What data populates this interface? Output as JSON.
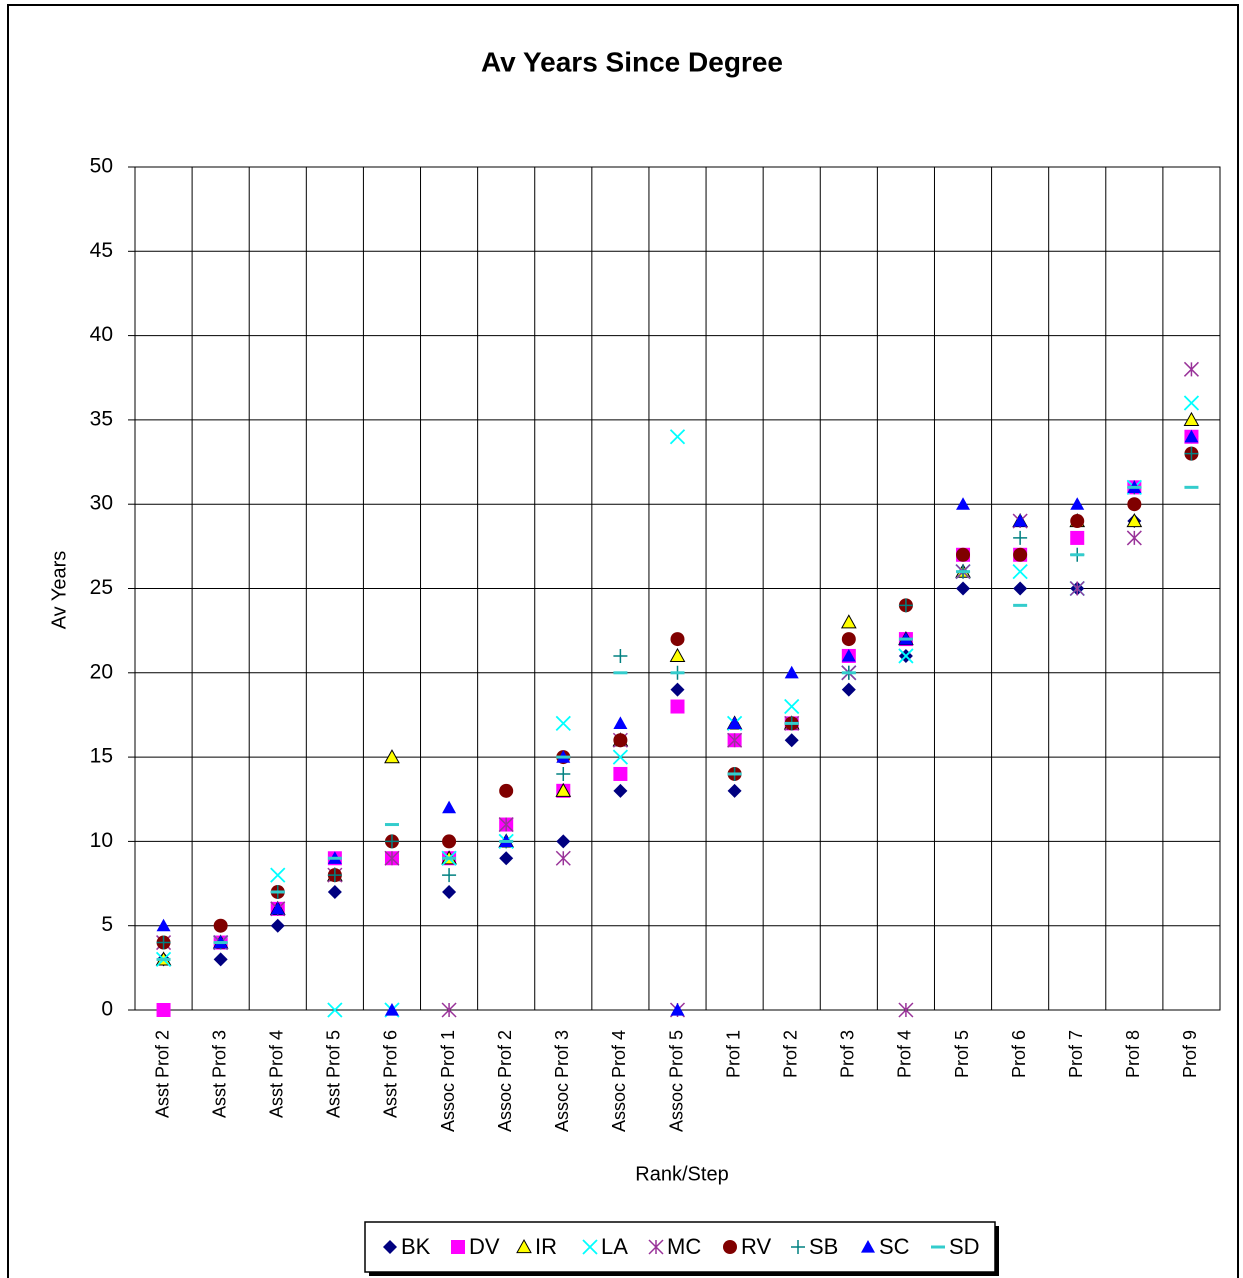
{
  "chart_data": {
    "type": "point",
    "title": "Av Years Since Degree",
    "x_label": "Rank/Step",
    "y_label": "Av Years",
    "categories": [
      "Asst Prof 2",
      "Asst Prof 3",
      "Asst Prof 4",
      "Asst Prof 5",
      "Asst Prof 6",
      "Assoc Prof 1",
      "Assoc Prof 2",
      "Assoc Prof 3",
      "Assoc Prof 4",
      "Assoc Prof 5",
      "Prof 1",
      "Prof 2",
      "Prof 3",
      "Prof 4",
      "Prof 5",
      "Prof 6",
      "Prof 7",
      "Prof 8",
      "Prof 9"
    ],
    "ylim": [
      0,
      50
    ],
    "yticks": [
      0,
      5,
      10,
      15,
      20,
      25,
      30,
      35,
      40,
      45,
      50
    ],
    "grid": true,
    "legend": "bottom",
    "series": [
      {
        "name": "BK",
        "color": "#000080",
        "marker": "diamond",
        "values": [
          3,
          3,
          5,
          7,
          9,
          7,
          9,
          10,
          13,
          19,
          13,
          16,
          19,
          21,
          25,
          25,
          25,
          29,
          34
        ]
      },
      {
        "name": "DV",
        "color": "#ff00ff",
        "marker": "square",
        "values": [
          0,
          4,
          6,
          9,
          9,
          9,
          11,
          13,
          14,
          18,
          16,
          17,
          21,
          22,
          27,
          27,
          28,
          31,
          34
        ]
      },
      {
        "name": "IR",
        "color": "#ffff00",
        "marker": "triangle-outline",
        "values": [
          3,
          4,
          6,
          8,
          15,
          9,
          10,
          13,
          16,
          21,
          17,
          17,
          23,
          22,
          26,
          29,
          29,
          29,
          35
        ]
      },
      {
        "name": "LA",
        "color": "#00ffff",
        "marker": "x",
        "values": [
          3,
          4,
          8,
          0,
          0,
          9,
          10,
          17,
          15,
          34,
          17,
          18,
          20,
          21,
          26,
          26,
          25,
          31,
          36
        ]
      },
      {
        "name": "MC",
        "color": "#993399",
        "marker": "star",
        "values": [
          4,
          4,
          6,
          8,
          9,
          0,
          11,
          9,
          16,
          0,
          16,
          17,
          20,
          0,
          26,
          29,
          25,
          28,
          38
        ]
      },
      {
        "name": "RV",
        "color": "#800000",
        "marker": "circle",
        "values": [
          4,
          5,
          7,
          8,
          10,
          10,
          13,
          15,
          16,
          22,
          14,
          17,
          22,
          24,
          27,
          27,
          29,
          30,
          33
        ]
      },
      {
        "name": "SB",
        "color": "#008080",
        "marker": "plus",
        "values": [
          4,
          4,
          7,
          8,
          10,
          8,
          10,
          14,
          21,
          20,
          14,
          17,
          20,
          24,
          26,
          28,
          27,
          31,
          33
        ]
      },
      {
        "name": "SC",
        "color": "#0000ff",
        "marker": "triangle",
        "values": [
          5,
          4,
          6,
          9,
          0,
          12,
          10,
          15,
          17,
          0,
          17,
          20,
          21,
          22,
          30,
          29,
          30,
          31,
          34
        ]
      },
      {
        "name": "SD",
        "color": "#33cccc",
        "marker": "dash",
        "values": [
          3,
          4,
          7,
          9,
          11,
          9,
          10,
          15,
          20,
          20,
          14,
          17,
          20,
          22,
          26,
          24,
          27,
          31,
          31
        ]
      }
    ]
  }
}
